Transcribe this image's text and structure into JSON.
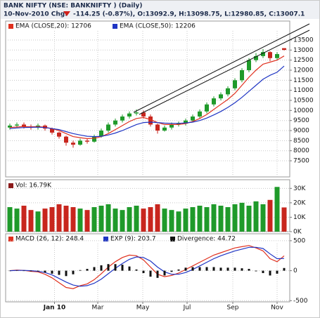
{
  "chart_data": [
    {
      "type": "candlestick",
      "title": "BANK NIFTY (NSE: BANKNIFTY ) (Daily)",
      "subtitle": "10-Nov-2010 Chg:",
      "change_text": "-114.25 (-0.87%), O:13092.9, H:13098.75, L:12980.85, C:13007.1",
      "up_color": "#1f9a2a",
      "down_color": "#c8261e",
      "open": [
        9150,
        9250,
        9300,
        9200,
        9150,
        9250,
        9100,
        8900,
        8700,
        8400,
        8300,
        8500,
        8450,
        8700,
        9000,
        9300,
        9500,
        9700,
        9850,
        9900,
        9700,
        9300,
        9000,
        9150,
        9300,
        9350,
        9500,
        9700,
        9950,
        10300,
        10600,
        10800,
        11100,
        11500,
        12000,
        12500,
        12700,
        12900,
        12600,
        13092.9
      ],
      "high": [
        9350,
        9400,
        9400,
        9300,
        9350,
        9300,
        9150,
        8950,
        8750,
        8500,
        8600,
        8600,
        8800,
        9100,
        9400,
        9600,
        9800,
        9950,
        10050,
        10000,
        9800,
        9350,
        9250,
        9400,
        9450,
        9600,
        9800,
        10050,
        10400,
        10700,
        10900,
        11200,
        11600,
        12100,
        12600,
        12850,
        13050,
        12950,
        12900,
        13098.75
      ],
      "low": [
        9050,
        9150,
        9100,
        9050,
        9050,
        9000,
        8800,
        8600,
        8250,
        8150,
        8250,
        8350,
        8400,
        8650,
        8900,
        9200,
        9400,
        9600,
        9750,
        9600,
        9200,
        8850,
        8950,
        9050,
        9200,
        9250,
        9400,
        9600,
        9850,
        10200,
        10500,
        10700,
        11000,
        11400,
        11900,
        12400,
        12600,
        12450,
        12500,
        12980.85
      ],
      "close": [
        9250,
        9300,
        9200,
        9150,
        9250,
        9100,
        8900,
        8700,
        8400,
        8300,
        8500,
        8450,
        8700,
        9000,
        9300,
        9500,
        9700,
        9850,
        9900,
        9700,
        9300,
        9000,
        9150,
        9300,
        9350,
        9500,
        9700,
        9950,
        10300,
        10600,
        10800,
        11100,
        11500,
        12000,
        12500,
        12700,
        12900,
        12600,
        12800,
        13007.1
      ],
      "series": [
        {
          "name": "EMA (CLOSE,20): 12706",
          "color": "#e0301e",
          "values": [
            9150,
            9180,
            9200,
            9190,
            9200,
            9170,
            9100,
            9000,
            8850,
            8700,
            8650,
            8600,
            8620,
            8700,
            8850,
            9050,
            9250,
            9450,
            9600,
            9650,
            9550,
            9400,
            9300,
            9300,
            9300,
            9350,
            9450,
            9600,
            9800,
            10050,
            10300,
            10550,
            10850,
            11250,
            11650,
            12000,
            12300,
            12400,
            12500,
            12706
          ]
        },
        {
          "name": "EMA (CLOSE,50): 12206",
          "color": "#1f35c4",
          "values": [
            9100,
            9130,
            9150,
            9160,
            9170,
            9150,
            9100,
            9050,
            8950,
            8850,
            8780,
            8720,
            8700,
            8720,
            8780,
            8880,
            9000,
            9150,
            9300,
            9400,
            9420,
            9400,
            9370,
            9360,
            9360,
            9380,
            9420,
            9500,
            9620,
            9780,
            9950,
            10150,
            10380,
            10650,
            10950,
            11250,
            11550,
            11750,
            11900,
            12206
          ]
        }
      ],
      "xlim": [
        -0.6,
        39.8
      ],
      "ylim": [
        6700,
        14440
      ],
      "yticks": [
        7500,
        8000,
        8500,
        9000,
        9500,
        10000,
        10500,
        11000,
        11500,
        12000,
        12500,
        13000,
        13500
      ],
      "grid": true
    },
    {
      "type": "volume",
      "title": "Vol: 16.79K",
      "values": [
        17000,
        16000,
        18000,
        15000,
        14000,
        16000,
        17000,
        19000,
        18000,
        17000,
        16000,
        15000,
        17000,
        18000,
        19000,
        16000,
        15000,
        17000,
        18000,
        16000,
        17000,
        19000,
        16000,
        15000,
        14000,
        16000,
        17000,
        18000,
        17000,
        19000,
        18000,
        17000,
        19000,
        20000,
        18000,
        21000,
        19000,
        22000,
        31000,
        16790
      ],
      "ylim": [
        0,
        36000
      ],
      "yticks": [
        {
          "value": 0,
          "label": "0K"
        },
        {
          "value": 10000,
          "label": "10K"
        },
        {
          "value": 20000,
          "label": "20K"
        },
        {
          "value": 30000,
          "label": "30K"
        }
      ],
      "grid": true
    },
    {
      "type": "macd",
      "series": [
        {
          "name": "MACD (26, 12): 248.4",
          "color": "#e0301e",
          "marker": "line",
          "values": [
            0,
            10,
            5,
            -10,
            -20,
            -60,
            -120,
            -200,
            -280,
            -300,
            -250,
            -220,
            -150,
            -50,
            60,
            150,
            220,
            260,
            250,
            180,
            60,
            -60,
            -100,
            -80,
            -40,
            20,
            80,
            140,
            200,
            260,
            300,
            340,
            380,
            400,
            420,
            380,
            330,
            200,
            150,
            248.4
          ]
        },
        {
          "name": "EXP (9): 203.7",
          "color": "#1f35c4",
          "marker": "line",
          "values": [
            0,
            5,
            5,
            0,
            -10,
            -30,
            -70,
            -130,
            -190,
            -240,
            -260,
            -250,
            -210,
            -140,
            -50,
            40,
            120,
            190,
            230,
            220,
            160,
            60,
            -20,
            -60,
            -60,
            -30,
            20,
            80,
            140,
            200,
            250,
            290,
            330,
            360,
            390,
            390,
            370,
            280,
            200,
            203.7
          ]
        },
        {
          "name": "Divergence: 44.72",
          "color": "#111111",
          "marker": "bar",
          "values": [
            0,
            5,
            0,
            -10,
            -10,
            -30,
            -50,
            -70,
            -90,
            -60,
            10,
            30,
            60,
            90,
            110,
            110,
            100,
            70,
            20,
            -40,
            -100,
            -120,
            -80,
            -20,
            20,
            50,
            60,
            60,
            60,
            60,
            50,
            50,
            50,
            40,
            30,
            -10,
            -40,
            -80,
            -50,
            44.72
          ]
        }
      ],
      "ylim": [
        -520,
        616
      ],
      "yticks": [
        -500,
        0,
        500
      ],
      "xticks": [
        {
          "value": 6.35,
          "label": "Jan 10"
        },
        {
          "value": 12.5,
          "label": "Mar"
        },
        {
          "value": 18.9,
          "label": "May"
        },
        {
          "value": 25.2,
          "label": "Jul"
        },
        {
          "value": 31.7,
          "label": "Sep"
        },
        {
          "value": 38.0,
          "label": "Nov"
        }
      ],
      "grid": true
    }
  ]
}
